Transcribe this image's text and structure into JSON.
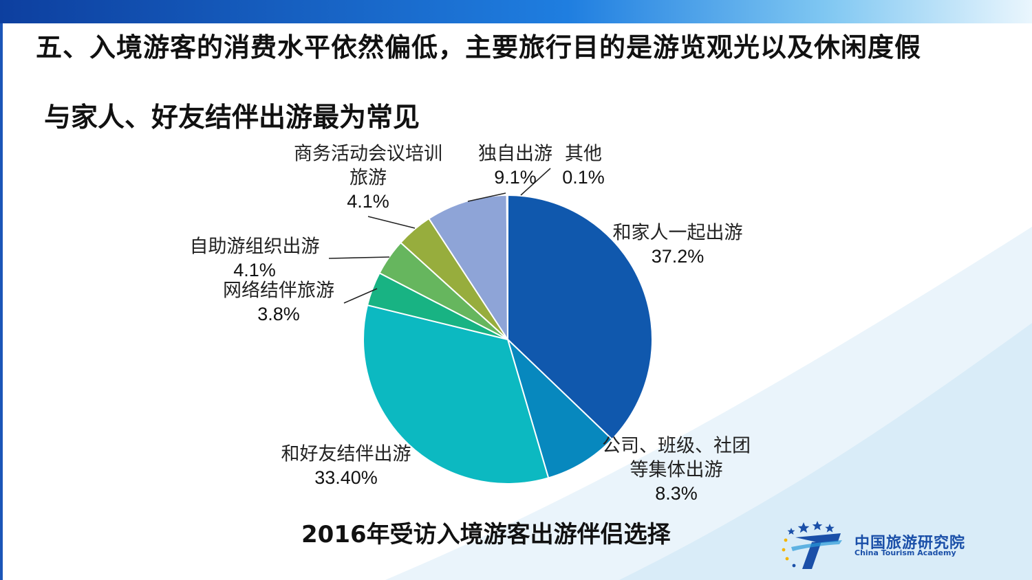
{
  "page": {
    "title": "五、入境游客的消费水平依然偏低，主要旅行目的是游览观光以及休闲度假",
    "subtitle": "与家人、好友结伴出游最为常见"
  },
  "chart_data": {
    "type": "pie",
    "title": "2016年受访入境游客出游伴侣选择",
    "slices": [
      {
        "label_lines": [
          "和家人一起出游"
        ],
        "value": 37.2,
        "value_text": "37.2%",
        "color": "#1058ad"
      },
      {
        "label_lines": [
          "公司、班级、社团",
          "等集体出游"
        ],
        "value": 8.3,
        "value_text": "8.3%",
        "color": "#0788be"
      },
      {
        "label_lines": [
          "和好友结伴出游"
        ],
        "value": 33.4,
        "value_text": "33.40%",
        "color": "#0cb9c1"
      },
      {
        "label_lines": [
          "网络结伴旅游"
        ],
        "value": 3.8,
        "value_text": "3.8%",
        "color": "#18b383"
      },
      {
        "label_lines": [
          "自助游组织出游"
        ],
        "value": 4.1,
        "value_text": "4.1%",
        "color": "#66b65e"
      },
      {
        "label_lines": [
          "商务活动会议培训",
          "旅游"
        ],
        "value": 4.1,
        "value_text": "4.1%",
        "color": "#97ad3d"
      },
      {
        "label_lines": [
          "独自出游"
        ],
        "value": 9.1,
        "value_text": "9.1%",
        "color": "#8ea4d7"
      },
      {
        "label_lines": [
          "其他"
        ],
        "value": 0.1,
        "value_text": "0.1%",
        "color": "#c9dcef"
      }
    ]
  },
  "branding": {
    "name_cn": "中国旅游研究院",
    "name_en": "China Tourism Academy"
  },
  "colors": {
    "header_bar": "#1f7ee0",
    "brand_blue": "#1a4fa8"
  }
}
